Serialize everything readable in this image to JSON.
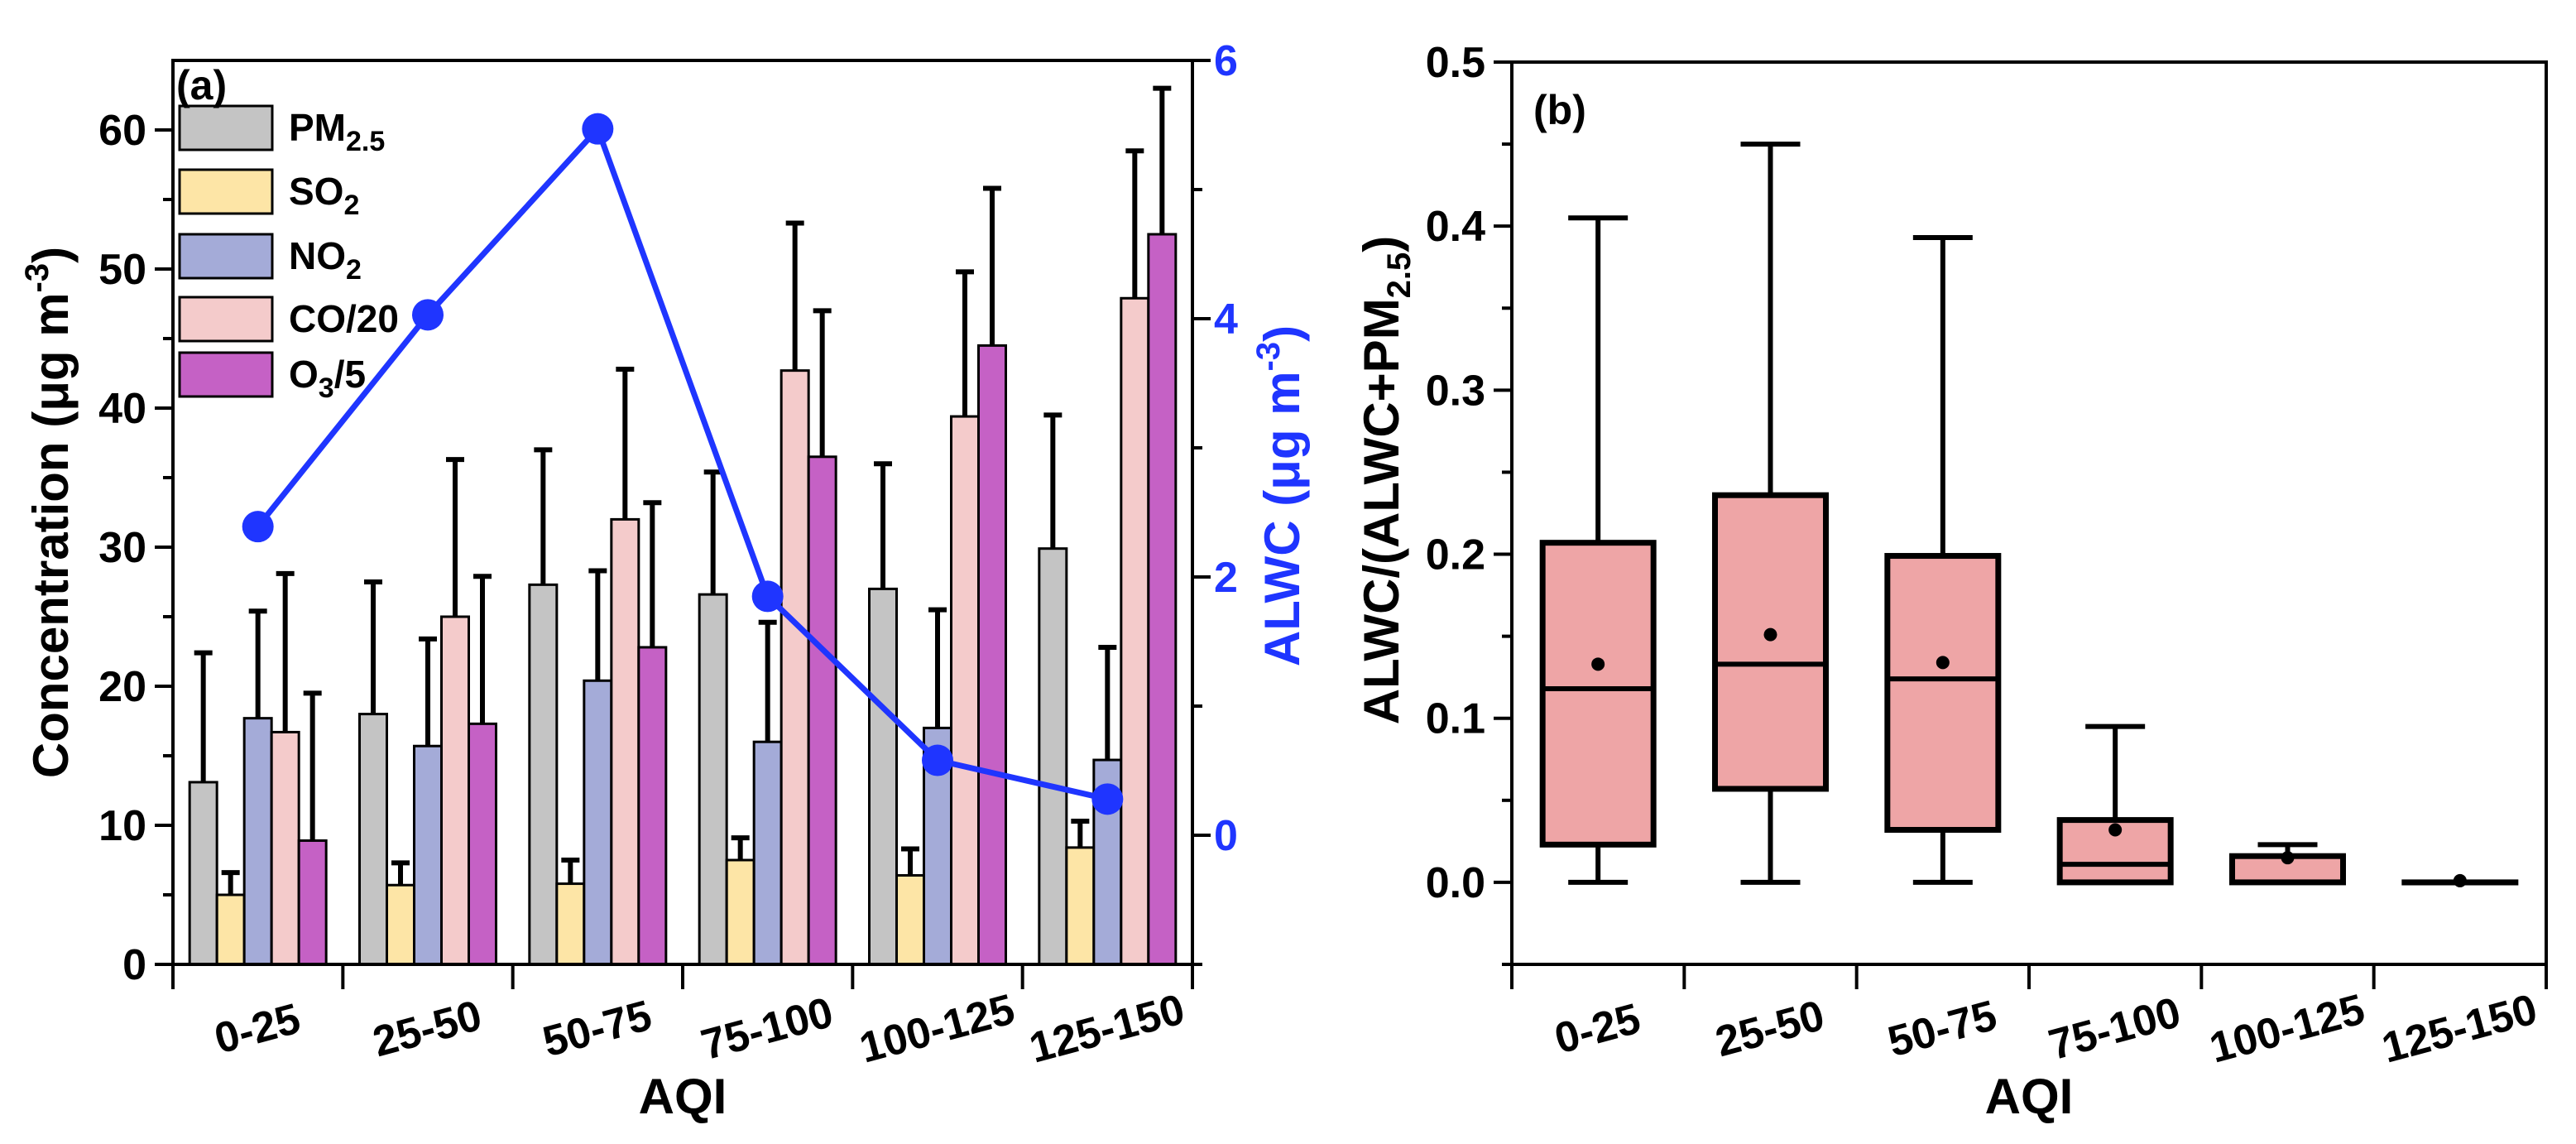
{
  "chart_data": [
    {
      "type": "bar",
      "panel_label": "(a)",
      "xlabel": "AQI",
      "ylabel": {
        "main": "Concentration (μg m",
        "sup": "-3",
        "end": ")"
      },
      "y2label": {
        "main": "ALWC (μg m",
        "sup": "-3",
        "end": ")"
      },
      "ylim": [
        0,
        65
      ],
      "y2lim": [
        -1,
        6
      ],
      "yticks": [
        "0",
        "10",
        "20",
        "30",
        "40",
        "50",
        "60"
      ],
      "y2ticks": [
        "0",
        "2",
        "4",
        "6"
      ],
      "categories": [
        "0-25",
        "25-50",
        "50-75",
        "75-100",
        "100-125",
        "125-150"
      ],
      "series": [
        {
          "name": "PM",
          "sub": "2.5",
          "tail": "",
          "color": "#c4c4c4",
          "values": [
            13.1,
            18.0,
            27.3,
            26.6,
            27.0,
            29.9
          ],
          "errors": [
            9.3,
            9.5,
            9.7,
            8.8,
            9.0,
            9.6
          ]
        },
        {
          "name": "SO",
          "sub": "2",
          "tail": "",
          "color": "#fde5a6",
          "values": [
            5.0,
            5.7,
            5.8,
            7.5,
            6.4,
            8.4
          ],
          "errors": [
            1.6,
            1.6,
            1.7,
            1.6,
            1.9,
            1.9
          ]
        },
        {
          "name": "NO",
          "sub": "2",
          "tail": "",
          "color": "#a4abd8",
          "values": [
            17.7,
            15.7,
            20.4,
            16.0,
            17.0,
            14.7
          ],
          "errors": [
            7.7,
            7.7,
            7.9,
            8.6,
            8.5,
            8.1
          ]
        },
        {
          "name": "CO/20",
          "sub": "",
          "tail": "",
          "color": "#f4cbcb",
          "values": [
            16.7,
            25.0,
            32.0,
            42.7,
            39.4,
            47.9
          ],
          "errors": [
            11.4,
            11.3,
            10.8,
            10.6,
            10.4,
            10.6
          ]
        },
        {
          "name": "O",
          "sub": "3",
          "tail": "/5",
          "color": "#c561c5",
          "values": [
            8.9,
            17.3,
            22.8,
            36.5,
            44.5,
            52.5
          ],
          "errors": [
            10.6,
            10.6,
            10.4,
            10.5,
            11.3,
            10.5
          ]
        }
      ],
      "line_series": {
        "name": "ALWC",
        "color": "#1f35ff",
        "axis": "right",
        "values": [
          2.39,
          4.03,
          5.47,
          1.85,
          0.58,
          0.28
        ]
      }
    },
    {
      "type": "box",
      "panel_label": "(b)",
      "xlabel": "AQI",
      "ylabel": {
        "main": "ALWC/(ALWC+PM",
        "sub": "2.5",
        "end": ")"
      },
      "ylim": [
        -0.05,
        0.5
      ],
      "yticks": [
        "0.0",
        "0.1",
        "0.2",
        "0.3",
        "0.4",
        "0.5"
      ],
      "categories": [
        "0-25",
        "25-50",
        "50-75",
        "75-100",
        "100-125",
        "125-150"
      ],
      "color": "#eea5a6",
      "boxes": [
        {
          "min": 0.0,
          "q1": 0.023,
          "median": 0.118,
          "q3": 0.207,
          "max": 0.405,
          "mean": 0.133
        },
        {
          "min": 0.0,
          "q1": 0.057,
          "median": 0.133,
          "q3": 0.236,
          "max": 0.45,
          "mean": 0.151
        },
        {
          "min": 0.0,
          "q1": 0.032,
          "median": 0.124,
          "q3": 0.199,
          "max": 0.393,
          "mean": 0.134
        },
        {
          "min": 0.0,
          "q1": 0.0,
          "median": 0.011,
          "q3": 0.038,
          "max": 0.095,
          "mean": 0.032
        },
        {
          "min": 0.0,
          "q1": 0.0,
          "median": 0.0,
          "q3": 0.016,
          "max": 0.023,
          "mean": 0.015
        },
        {
          "min": 0.0,
          "q1": 0.0,
          "median": 0.0,
          "q3": 0.0,
          "max": 0.0,
          "mean": 0.001
        }
      ]
    }
  ]
}
